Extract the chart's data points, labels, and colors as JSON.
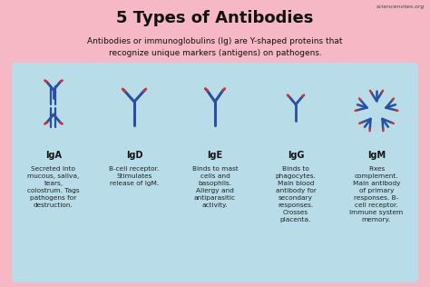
{
  "title": "5 Types of Antibodies",
  "subtitle": "Antibodies or immunoglobulins (Ig) are Y-shaped proteins that\nrecognize unique markers (antigens) on pathogens.",
  "watermark": "sciencenotes.org",
  "bg_color": "#F5B8C4",
  "card_color": "#B8DDE8",
  "title_color": "#111111",
  "subtitle_color": "#111111",
  "label_color": "#111111",
  "desc_color": "#222222",
  "antibody_blue": "#2B4FA0",
  "antibody_red": "#CC3333",
  "cards": [
    {
      "label": "IgA",
      "description": "Secreted into\nmucous, saliva,\ntears,\ncolostrum. Tags\npathogens for\ndestruction.",
      "shape": "iga"
    },
    {
      "label": "IgD",
      "description": "B-cell receptor.\nStimulates\nrelease of IgM.",
      "shape": "igd"
    },
    {
      "label": "IgE",
      "description": "Binds to mast\ncells and\nbasophils.\nAllergy and\nantiparasitic\nactivity.",
      "shape": "ige"
    },
    {
      "label": "IgG",
      "description": "Binds to\nphagocytes.\nMain blood\nantibody for\nsecondary\nresponses.\nCrosses\nplacenta.",
      "shape": "igg"
    },
    {
      "label": "IgM",
      "description": "Fixes\ncomplement.\nMain antibody\nof primary\nresponses. B-\ncell receptor.\nImmune system\nmemory.",
      "shape": "igm"
    }
  ]
}
